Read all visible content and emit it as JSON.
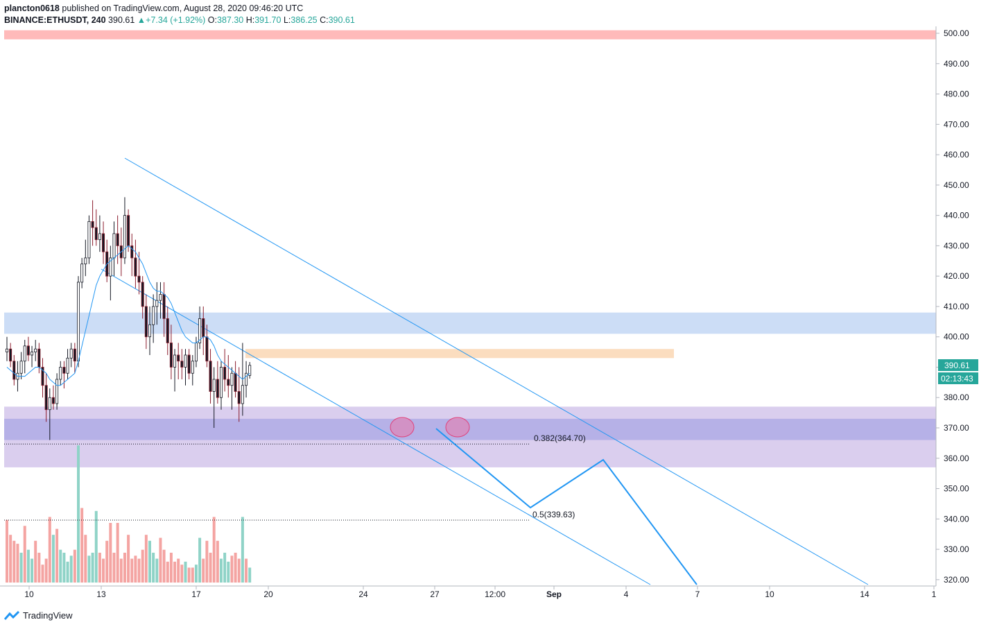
{
  "header": {
    "publisher": "plancton0618",
    "published_text": "published on TradingView.com, August 28, 2020 09:46:20 UTC",
    "symbol": "BINANCE:ETHUSDT, 240",
    "last": "390.61",
    "change": "+7.34 (+1.92%)",
    "o_label": "O:",
    "o": "387.30",
    "h_label": "H:",
    "h": "391.70",
    "l_label": "L:",
    "l": "386.25",
    "c_label": "C:",
    "c": "390.61"
  },
  "price_tag": {
    "price": "390.61",
    "countdown": "02:13:43"
  },
  "fib_labels": {
    "f382": "0.382(364.70)",
    "f5": "0.5(339.63)"
  },
  "footer": {
    "brand": "TradingView"
  },
  "colors": {
    "up": "#26a69a",
    "down": "#ef5350",
    "ma": "#2196f3",
    "line": "#2196f3"
  },
  "chart_data": {
    "type": "candlestick",
    "y_axis": {
      "ticks": [
        "500.00",
        "490.00",
        "480.00",
        "470.00",
        "460.00",
        "450.00",
        "440.00",
        "430.00",
        "420.00",
        "410.00",
        "400.00",
        "390.00",
        "380.00",
        "370.00",
        "360.00",
        "350.00",
        "340.00",
        "330.00",
        "320.00"
      ],
      "min": 318,
      "max": 502
    },
    "x_axis": {
      "ticks": [
        "10",
        "13",
        "17",
        "20",
        "24",
        "27",
        "12:00",
        "Sep",
        "4",
        "7",
        "10",
        "14",
        "1"
      ]
    },
    "zones": [
      {
        "name": "resistance-top",
        "from": 498,
        "to": 501,
        "color": "#ffb3b3"
      },
      {
        "name": "blue-resistance",
        "from": 401,
        "to": 408,
        "color": "#c7d9f5"
      },
      {
        "name": "orange-level",
        "from": 393,
        "to": 396,
        "color": "#fbd9b8"
      },
      {
        "name": "purple-support-outer",
        "from": 357,
        "to": 377,
        "color": "#d6c9ec"
      },
      {
        "name": "purple-support-inner",
        "from": 366,
        "to": 373,
        "color": "#b1aee6"
      }
    ],
    "fib_levels": [
      {
        "label": "0.382",
        "value": 364.7
      },
      {
        "label": "0.5",
        "value": 339.63
      }
    ],
    "ohlc": [
      [
        395,
        400,
        392,
        396
      ],
      [
        396,
        398,
        390,
        392
      ],
      [
        392,
        394,
        384,
        386
      ],
      [
        386,
        392,
        382,
        388
      ],
      [
        388,
        395,
        386,
        392
      ],
      [
        392,
        399,
        388,
        397
      ],
      [
        397,
        400,
        392,
        394
      ],
      [
        394,
        397,
        390,
        395
      ],
      [
        395,
        399,
        392,
        396
      ],
      [
        396,
        398,
        388,
        390
      ],
      [
        390,
        393,
        380,
        384
      ],
      [
        384,
        388,
        372,
        376
      ],
      [
        376,
        383,
        366,
        380
      ],
      [
        380,
        384,
        376,
        378
      ],
      [
        378,
        388,
        376,
        386
      ],
      [
        386,
        392,
        384,
        390
      ],
      [
        390,
        392,
        383,
        388
      ],
      [
        388,
        396,
        386,
        393
      ],
      [
        393,
        398,
        390,
        396
      ],
      [
        396,
        398,
        388,
        392
      ],
      [
        392,
        420,
        390,
        418
      ],
      [
        418,
        426,
        416,
        424
      ],
      [
        424,
        432,
        420,
        426
      ],
      [
        426,
        440,
        424,
        438
      ],
      [
        438,
        445,
        430,
        436
      ],
      [
        436,
        442,
        430,
        432
      ],
      [
        432,
        440,
        428,
        434
      ],
      [
        434,
        438,
        424,
        428
      ],
      [
        428,
        432,
        418,
        420
      ],
      [
        420,
        430,
        412,
        426
      ],
      [
        426,
        438,
        420,
        434
      ],
      [
        434,
        440,
        424,
        430
      ],
      [
        430,
        436,
        420,
        426
      ],
      [
        426,
        446,
        424,
        440
      ],
      [
        440,
        442,
        428,
        430
      ],
      [
        430,
        434,
        420,
        426
      ],
      [
        426,
        432,
        416,
        420
      ],
      [
        420,
        428,
        414,
        418
      ],
      [
        418,
        420,
        406,
        410
      ],
      [
        410,
        414,
        396,
        400
      ],
      [
        400,
        410,
        394,
        404
      ],
      [
        404,
        414,
        398,
        410
      ],
      [
        410,
        418,
        404,
        412
      ],
      [
        412,
        418,
        406,
        414
      ],
      [
        414,
        418,
        400,
        406
      ],
      [
        406,
        410,
        394,
        398
      ],
      [
        398,
        404,
        386,
        390
      ],
      [
        390,
        396,
        382,
        394
      ],
      [
        394,
        398,
        386,
        392
      ],
      [
        392,
        396,
        386,
        390
      ],
      [
        390,
        396,
        384,
        394
      ],
      [
        394,
        396,
        386,
        388
      ],
      [
        388,
        394,
        384,
        392
      ],
      [
        392,
        400,
        390,
        398
      ],
      [
        398,
        410,
        396,
        406
      ],
      [
        406,
        410,
        394,
        400
      ],
      [
        400,
        404,
        390,
        392
      ],
      [
        392,
        396,
        378,
        382
      ],
      [
        382,
        390,
        370,
        386
      ],
      [
        386,
        392,
        378,
        380
      ],
      [
        380,
        392,
        376,
        390
      ],
      [
        390,
        396,
        382,
        386
      ],
      [
        386,
        394,
        380,
        384
      ],
      [
        384,
        390,
        376,
        388
      ],
      [
        388,
        392,
        380,
        382
      ],
      [
        382,
        390,
        372,
        378
      ],
      [
        378,
        398,
        374,
        384
      ],
      [
        384,
        392,
        380,
        388
      ],
      [
        387.3,
        391.7,
        386.25,
        390.61
      ]
    ],
    "moving_average": [
      390,
      389,
      388,
      387,
      387,
      387,
      388,
      389,
      390,
      390,
      389,
      388,
      386,
      385,
      384,
      384,
      385,
      386,
      387,
      388,
      392,
      397,
      402,
      407,
      412,
      417,
      420,
      422,
      424,
      425,
      426,
      427,
      428,
      429,
      430,
      429,
      428,
      426,
      424,
      421,
      418,
      416,
      415,
      415,
      414,
      413,
      411,
      408,
      405,
      402,
      400,
      399,
      398,
      398,
      399,
      400,
      400,
      399,
      397,
      394,
      392,
      391,
      390,
      389,
      388,
      387,
      386,
      387,
      388
    ],
    "volume": [
      [
        21,
        "d"
      ],
      [
        16,
        "d"
      ],
      [
        14,
        "d"
      ],
      [
        13,
        "d"
      ],
      [
        10,
        "u"
      ],
      [
        19,
        "d"
      ],
      [
        11,
        "u"
      ],
      [
        8,
        "u"
      ],
      [
        14,
        "d"
      ],
      [
        10,
        "d"
      ],
      [
        6,
        "d"
      ],
      [
        8,
        "d"
      ],
      [
        22,
        "d"
      ],
      [
        16,
        "u"
      ],
      [
        18,
        "d"
      ],
      [
        11,
        "u"
      ],
      [
        10,
        "u"
      ],
      [
        7,
        "u"
      ],
      [
        9,
        "u"
      ],
      [
        11,
        "d"
      ],
      [
        46,
        "u"
      ],
      [
        25,
        "d"
      ],
      [
        16,
        "d"
      ],
      [
        9,
        "u"
      ],
      [
        10,
        "u"
      ],
      [
        24,
        "u"
      ],
      [
        10,
        "d"
      ],
      [
        8,
        "d"
      ],
      [
        14,
        "d"
      ],
      [
        20,
        "d"
      ],
      [
        10,
        "d"
      ],
      [
        20,
        "d"
      ],
      [
        8,
        "d"
      ],
      [
        10,
        "d"
      ],
      [
        16,
        "d"
      ],
      [
        8,
        "d"
      ],
      [
        9,
        "d"
      ],
      [
        8,
        "d"
      ],
      [
        11,
        "d"
      ],
      [
        16,
        "d"
      ],
      [
        14,
        "u"
      ],
      [
        10,
        "u"
      ],
      [
        8,
        "u"
      ],
      [
        15,
        "d"
      ],
      [
        11,
        "d"
      ],
      [
        7,
        "d"
      ],
      [
        10,
        "d"
      ],
      [
        7,
        "d"
      ],
      [
        8,
        "d"
      ],
      [
        6,
        "d"
      ],
      [
        7,
        "u"
      ],
      [
        5,
        "d"
      ],
      [
        5,
        "d"
      ],
      [
        6,
        "u"
      ],
      [
        15,
        "u"
      ],
      [
        8,
        "d"
      ],
      [
        14,
        "d"
      ],
      [
        10,
        "d"
      ],
      [
        22,
        "d"
      ],
      [
        14,
        "d"
      ],
      [
        8,
        "u"
      ],
      [
        10,
        "u"
      ],
      [
        7,
        "u"
      ],
      [
        9,
        "d"
      ],
      [
        10,
        "d"
      ],
      [
        8,
        "d"
      ],
      [
        22,
        "u"
      ],
      [
        8,
        "d"
      ],
      [
        5,
        "u"
      ]
    ]
  }
}
